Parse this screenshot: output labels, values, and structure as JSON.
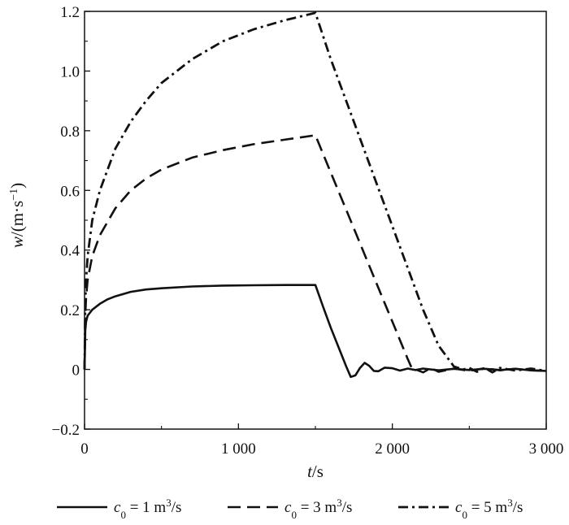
{
  "chart_data": {
    "type": "line",
    "xlabel": {
      "var": "t",
      "unit": "/s"
    },
    "ylabel": {
      "var": "w",
      "unit": "/(m·s",
      "sup": "−1",
      "close": ")"
    },
    "xlim": [
      0,
      3000
    ],
    "ylim": [
      -0.2,
      1.2
    ],
    "x_ticks": [
      0,
      1000,
      2000,
      3000
    ],
    "x_tick_labels": [
      "0",
      "1 000",
      "2 000",
      "3 000"
    ],
    "y_ticks": [
      -0.2,
      0,
      0.2,
      0.4,
      0.6,
      0.8,
      1.0,
      1.2
    ],
    "y_tick_labels": [
      "−0.2",
      "0",
      "0.2",
      "0.4",
      "0.6",
      "0.8",
      "1.0",
      "1.2"
    ],
    "grid": false,
    "legend_position": "bottom",
    "series": [
      {
        "name": "c0 = 1 m3/s",
        "legend": {
          "var": "c",
          "sub": "0",
          "mid": " = 1 m",
          "sup": "3",
          "end": "/s"
        },
        "style": "solid",
        "x": [
          0,
          5,
          10,
          20,
          50,
          100,
          150,
          200,
          300,
          400,
          500,
          700,
          900,
          1100,
          1300,
          1500,
          1550,
          1600,
          1650,
          1700,
          1730,
          1760,
          1790,
          1820,
          1850,
          1880,
          1910,
          1950,
          2000,
          2050,
          2100,
          2150,
          2200,
          2300,
          2400,
          2500,
          2600,
          2700,
          2800,
          2900,
          3000
        ],
        "y": [
          0,
          0.13,
          0.16,
          0.18,
          0.2,
          0.22,
          0.235,
          0.245,
          0.26,
          0.268,
          0.272,
          0.278,
          0.281,
          0.282,
          0.283,
          0.283,
          0.21,
          0.14,
          0.075,
          0.01,
          -0.025,
          -0.02,
          0.005,
          0.022,
          0.012,
          -0.005,
          -0.006,
          0.006,
          0.004,
          -0.004,
          0.003,
          -0.002,
          0.003,
          -0.003,
          0.002,
          -0.002,
          0.002,
          -0.002,
          0.002,
          -0.003,
          -0.005
        ]
      },
      {
        "name": "c0 = 3 m3/s",
        "legend": {
          "var": "c",
          "sub": "0",
          "mid": " = 3 m",
          "sup": "3",
          "end": "/s"
        },
        "style": "dashed",
        "x": [
          0,
          5,
          10,
          20,
          50,
          100,
          200,
          300,
          400,
          500,
          700,
          900,
          1100,
          1300,
          1500,
          1600,
          1700,
          1800,
          1900,
          2000,
          2100,
          2130,
          2150,
          2200,
          2250,
          2300,
          2400,
          2500,
          2600,
          2700,
          2800,
          2900,
          3000
        ],
        "y": [
          0,
          0.18,
          0.24,
          0.3,
          0.38,
          0.45,
          0.54,
          0.6,
          0.64,
          0.67,
          0.71,
          0.735,
          0.755,
          0.77,
          0.785,
          0.66,
          0.535,
          0.41,
          0.285,
          0.16,
          0.035,
          0.0,
          0.0,
          -0.01,
          0.005,
          -0.008,
          0.003,
          -0.005,
          0.004,
          -0.003,
          0.002,
          -0.003,
          -0.005
        ]
      },
      {
        "name": "c0 = 5 m3/s",
        "legend": {
          "var": "c",
          "sub": "0",
          "mid": " = 5 m",
          "sup": "3",
          "end": "/s"
        },
        "style": "dashdot",
        "x": [
          0,
          5,
          10,
          20,
          50,
          100,
          200,
          300,
          400,
          500,
          700,
          900,
          1100,
          1300,
          1500,
          1600,
          1700,
          1800,
          1900,
          2000,
          2100,
          2200,
          2300,
          2400,
          2460,
          2500,
          2550,
          2600,
          2650,
          2700,
          2800,
          2900,
          3000
        ],
        "y": [
          0,
          0.22,
          0.3,
          0.38,
          0.5,
          0.6,
          0.74,
          0.83,
          0.9,
          0.96,
          1.04,
          1.1,
          1.14,
          1.17,
          1.195,
          1.04,
          0.9,
          0.76,
          0.62,
          0.48,
          0.34,
          0.2,
          0.08,
          0.01,
          0.0,
          0.005,
          -0.008,
          0.006,
          -0.01,
          0.005,
          -0.004,
          0.003,
          -0.005
        ]
      }
    ]
  }
}
